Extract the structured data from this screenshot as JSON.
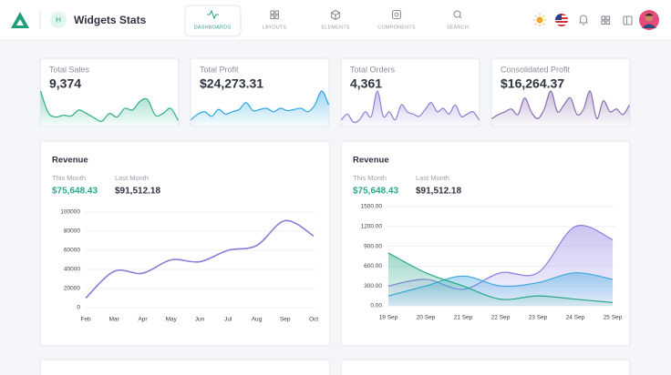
{
  "header": {
    "avatar_letter": "H",
    "title": "Widgets Stats",
    "nav": [
      "DASHBOARDS",
      "LAYOUTS",
      "ELEMENTS",
      "COMPONENTS",
      "SEARCH"
    ]
  },
  "stats": [
    {
      "title": "Total Sales",
      "value": "9,374",
      "color": "#2bb087",
      "values": [
        40,
        15,
        10,
        12,
        11,
        18,
        14,
        9,
        5,
        14,
        10,
        20,
        18,
        28,
        30,
        12,
        14,
        20,
        6
      ]
    },
    {
      "title": "Total Profit",
      "value": "$24,273.31",
      "color": "#2ba6e0",
      "values": [
        5,
        10,
        12,
        8,
        14,
        10,
        12,
        14,
        20,
        13,
        14,
        15,
        12,
        15,
        13,
        14,
        15,
        12,
        18,
        30,
        18
      ]
    },
    {
      "title": "Total Orders",
      "value": "4,361",
      "color": "#8a7fd6",
      "values": [
        5,
        10,
        3,
        5,
        12,
        8,
        30,
        8,
        12,
        5,
        18,
        12,
        10,
        8,
        14,
        20,
        12,
        15,
        10,
        18,
        8,
        10,
        12,
        5
      ]
    },
    {
      "title": "Consolidated Profit",
      "value": "$16,264.37",
      "color": "#8a6fb0",
      "values": [
        5,
        8,
        10,
        12,
        8,
        20,
        10,
        5,
        12,
        25,
        10,
        15,
        20,
        8,
        12,
        25,
        5,
        18,
        10,
        12,
        8,
        15
      ]
    }
  ],
  "revenue_cards": [
    {
      "title": "Revenue",
      "this_month_label": "This Month",
      "this_month": "$75,648.43",
      "last_month_label": "Last Month",
      "last_month": "$91,512.18"
    },
    {
      "title": "Revenue",
      "this_month_label": "This Month",
      "this_month": "$75,648.43",
      "last_month_label": "Last Month",
      "last_month": "$91,512.18"
    }
  ],
  "chart_data": [
    {
      "type": "line",
      "color": "#8a7fd6",
      "grid": true,
      "categories": [
        "Feb",
        "Mar",
        "Apr",
        "May",
        "Jun",
        "Jul",
        "Aug",
        "Sep",
        "Oct"
      ],
      "values": [
        10000,
        38000,
        36000,
        50000,
        48000,
        60000,
        65000,
        91000,
        75000
      ],
      "ylim": [
        0,
        100000
      ],
      "yticks": [
        0,
        20000,
        40000,
        60000,
        80000,
        100000
      ]
    },
    {
      "type": "area",
      "grid": true,
      "categories": [
        "19 Sep",
        "20 Sep",
        "21 Sep",
        "22 Sep",
        "23 Sep",
        "24 Sep",
        "25 Sep"
      ],
      "series": [
        {
          "color": "#8b7fe0",
          "values": [
            300,
            400,
            250,
            500,
            500,
            1200,
            1000
          ]
        },
        {
          "color": "#3fa7e0",
          "values": [
            150,
            300,
            450,
            300,
            350,
            500,
            400
          ]
        },
        {
          "color": "#2aa889",
          "values": [
            800,
            500,
            300,
            100,
            150,
            100,
            50
          ]
        }
      ],
      "ylim": [
        0,
        1500
      ],
      "yticks": [
        {
          "value": 0,
          "label": "0.00"
        },
        {
          "value": 300,
          "label": "300.00"
        },
        {
          "value": 600,
          "label": "600.00"
        },
        {
          "value": 900,
          "label": "900.00"
        },
        {
          "value": 1200,
          "label": "1200.00"
        },
        {
          "value": 1500,
          "label": "1500.00"
        }
      ]
    }
  ]
}
